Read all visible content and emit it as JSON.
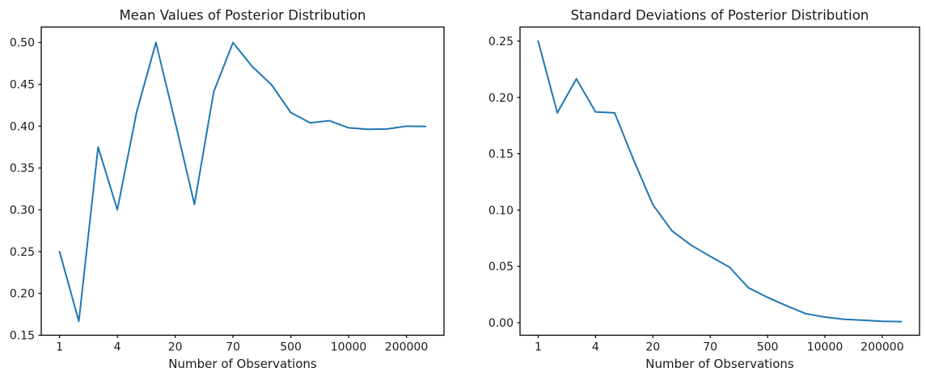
{
  "figure": {
    "background": "#ffffff",
    "line_color": "#1f77b4",
    "spine_color": "#000000",
    "text_color": "#1a1a1a"
  },
  "chart_data": [
    {
      "type": "line",
      "title": "Mean Values of Posterior Distribution",
      "xlabel": "Number of Observations",
      "ylabel": "",
      "legend": null,
      "grid": false,
      "x_scale_note": "points evenly spaced by index; ticks label observation counts",
      "xlim": [
        -0.95,
        19.95
      ],
      "ylim": [
        0.15,
        0.5185
      ],
      "x_tick_indices": [
        0,
        3,
        6,
        9,
        12,
        15,
        18
      ],
      "x_tick_labels": [
        "1",
        "4",
        "20",
        "70",
        "500",
        "10000",
        "200000"
      ],
      "y_ticks": [
        {
          "v": 0.15,
          "label": "0.15"
        },
        {
          "v": 0.2,
          "label": "0.20"
        },
        {
          "v": 0.25,
          "label": "0.25"
        },
        {
          "v": 0.3,
          "label": "0.30"
        },
        {
          "v": 0.35,
          "label": "0.35"
        },
        {
          "v": 0.4,
          "label": "0.40"
        },
        {
          "v": 0.45,
          "label": "0.45"
        },
        {
          "v": 0.5,
          "label": "0.50"
        }
      ],
      "values": [
        0.25,
        0.1667,
        0.375,
        0.3,
        0.4167,
        0.5,
        0.4048,
        0.3065,
        0.4412,
        0.5,
        0.4712,
        0.4495,
        0.4162,
        0.404,
        0.4065,
        0.398,
        0.3962,
        0.3966,
        0.3999,
        0.3997
      ]
    },
    {
      "type": "line",
      "title": "Standard Deviations of Posterior Distribution",
      "xlabel": "Number of Observations",
      "ylabel": "",
      "legend": null,
      "grid": false,
      "x_scale_note": "points evenly spaced by index; ticks label observation counts",
      "xlim": [
        -0.95,
        19.95
      ],
      "ylim": [
        -0.0111,
        0.2625
      ],
      "x_tick_indices": [
        0,
        3,
        6,
        9,
        12,
        15,
        18
      ],
      "x_tick_labels": [
        "1",
        "4",
        "20",
        "70",
        "500",
        "10000",
        "200000"
      ],
      "y_ticks": [
        {
          "v": 0.0,
          "label": "0.00"
        },
        {
          "v": 0.05,
          "label": "0.05"
        },
        {
          "v": 0.1,
          "label": "0.10"
        },
        {
          "v": 0.15,
          "label": "0.15"
        },
        {
          "v": 0.2,
          "label": "0.20"
        },
        {
          "v": 0.25,
          "label": "0.25"
        }
      ],
      "values": [
        0.25,
        0.1863,
        0.2165,
        0.1871,
        0.1863,
        0.1443,
        0.1047,
        0.0815,
        0.0689,
        0.0589,
        0.0494,
        0.031,
        0.0225,
        0.015,
        0.008,
        0.005,
        0.0031,
        0.0022,
        0.0012,
        0.001
      ]
    }
  ]
}
